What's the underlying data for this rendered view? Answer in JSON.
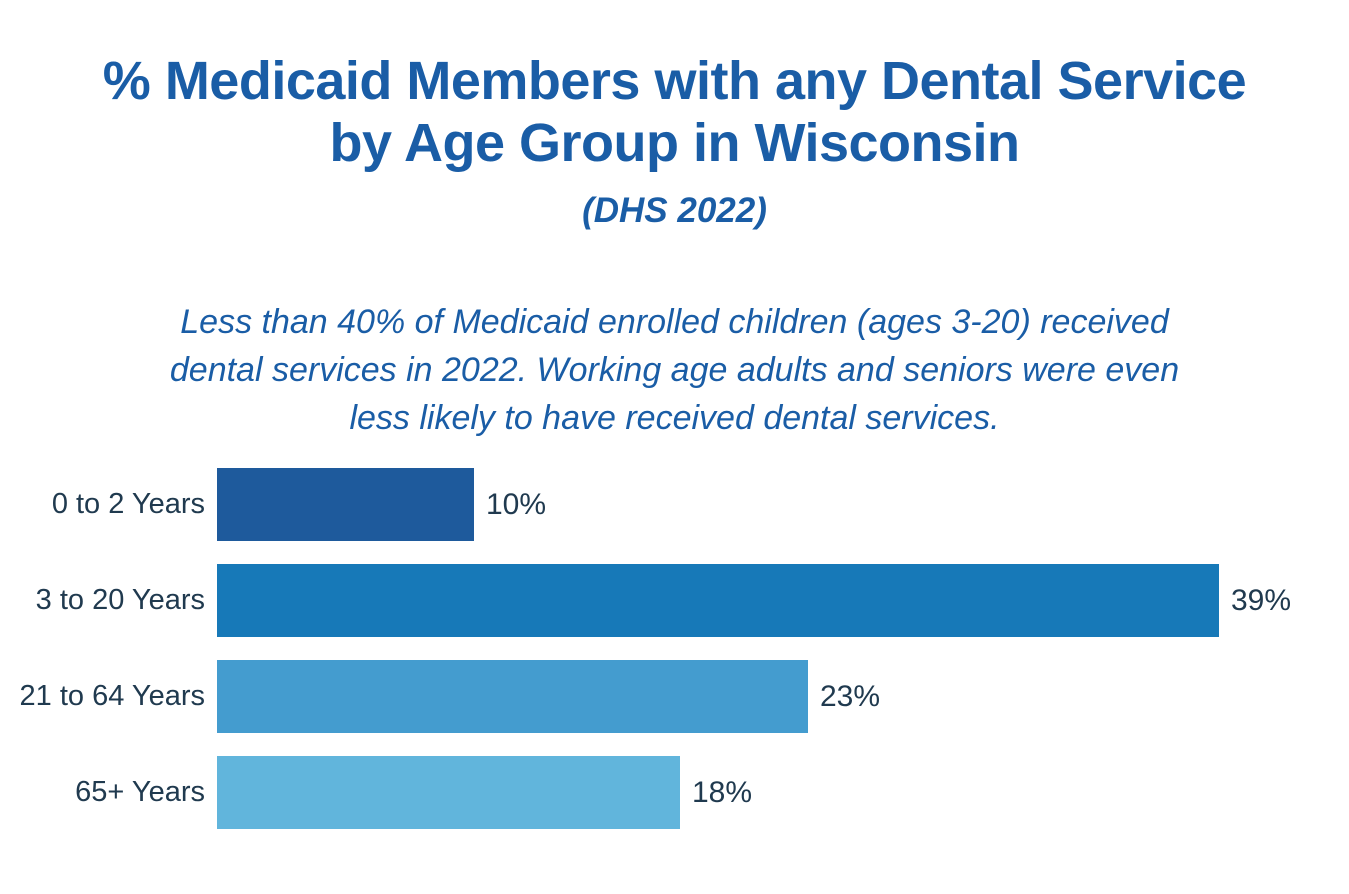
{
  "header": {
    "title_lines": [
      "% Medicaid Members with any Dental Service",
      "by Age Group in Wisconsin"
    ],
    "subtitle": "(DHS 2022)"
  },
  "summary": {
    "lines": [
      "Less than 40% of Medicaid enrolled children (ages 3-20) received",
      "dental services in 2022. Working age adults and seniors were even",
      "less likely to have received dental services."
    ]
  },
  "chart_data": {
    "type": "bar",
    "orientation": "horizontal",
    "title": "% Medicaid Members with any Dental Service by Age Group in Wisconsin",
    "subtitle": "(DHS 2022)",
    "categories": [
      "0 to 2 Years",
      "3 to 20 Years",
      "21 to 64 Years",
      "65+ Years"
    ],
    "values": [
      10,
      39,
      23,
      18
    ],
    "value_labels": [
      "10%",
      "39%",
      "23%",
      "18%"
    ],
    "bar_colors": [
      "#1E5A9C",
      "#1779B8",
      "#449CCF",
      "#61B5DC"
    ],
    "xlabel": "",
    "ylabel": "",
    "xlim": [
      0,
      40
    ],
    "grid": false,
    "legend": false,
    "value_label_position": "outside-end"
  },
  "colors": {
    "heading_text": "#1A5DA6",
    "axis_label_text": "#203A4F",
    "background": "#FFFFFF"
  }
}
